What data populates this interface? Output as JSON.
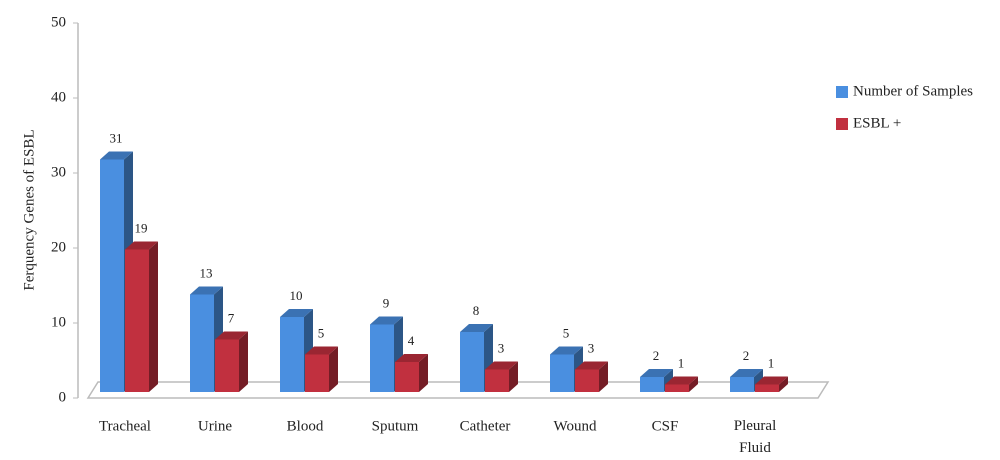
{
  "chart_data": {
    "type": "bar3d",
    "y_label": "Ferquency Genes of  ESBL",
    "categories": [
      "Tracheal",
      "Urine",
      "Blood",
      "Sputum",
      "Catheter",
      "Wound",
      "CSF",
      "Pleural Fluid"
    ],
    "series": [
      {
        "name": "Number of Samples",
        "color": "#4a8fe0",
        "values": [
          31,
          13,
          10,
          9,
          8,
          5,
          2,
          2
        ]
      },
      {
        "name": "ESBL +",
        "color": "#c1303f",
        "values": [
          19,
          7,
          5,
          4,
          3,
          3,
          1,
          1
        ]
      }
    ],
    "ylim": [
      0,
      50
    ],
    "yticks": [
      0,
      10,
      20,
      30,
      40,
      50
    ],
    "legend": "right"
  }
}
